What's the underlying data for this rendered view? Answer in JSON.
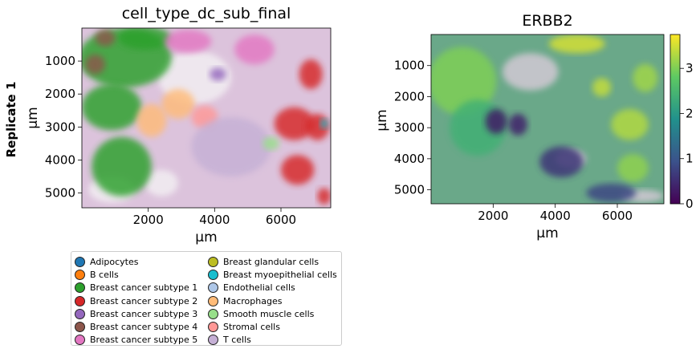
{
  "row_label": "Replicate 1",
  "colors": {
    "Adipocytes": "#1f77b4",
    "B cells": "#ff7f0e",
    "Breast cancer subtype 1": "#2ca02c",
    "Breast cancer subtype 2": "#d62728",
    "Breast cancer subtype 3": "#9467bd",
    "Breast cancer subtype 4": "#8c564b",
    "Breast cancer subtype 5": "#e377c2",
    "Breast glandular cells": "#bcbd22",
    "Breast myoepithelial cells": "#17becf",
    "Endothelial cells": "#aec7e8",
    "Macrophages": "#ffbb78",
    "Smooth muscle cells": "#98df8a",
    "Stromal cells": "#ff9896",
    "T cells": "#c5b0d5"
  },
  "chart_data": [
    {
      "type": "scatter",
      "title": "cell_type_dc_sub_final",
      "xlabel": "µm",
      "ylabel": "µm",
      "xlim": [
        0,
        7500
      ],
      "ylim": [
        5450,
        0
      ],
      "x_ticks": [
        2000,
        4000,
        6000
      ],
      "y_ticks": [
        1000,
        2000,
        3000,
        4000,
        5000
      ],
      "grid": false,
      "legend": {
        "placement": "below",
        "columns": 2,
        "entries": [
          "Adipocytes",
          "B cells",
          "Breast cancer subtype 1",
          "Breast cancer subtype 2",
          "Breast cancer subtype 3",
          "Breast cancer subtype 4",
          "Breast cancer subtype 5",
          "Breast glandular cells",
          "Breast myoepithelial cells",
          "Endothelial cells",
          "Macrophages",
          "Smooth muscle cells",
          "Stromal cells",
          "T cells"
        ]
      },
      "regions": [
        {
          "category": "Breast cancer subtype 1",
          "cx": 1300,
          "cy": 900,
          "rx": 1400,
          "ry": 900
        },
        {
          "category": "Breast cancer subtype 1",
          "cx": 900,
          "cy": 2400,
          "rx": 900,
          "ry": 700
        },
        {
          "category": "Breast cancer subtype 1",
          "cx": 1200,
          "cy": 4200,
          "rx": 900,
          "ry": 900
        },
        {
          "category": "Breast cancer subtype 1",
          "cx": 1900,
          "cy": 300,
          "rx": 800,
          "ry": 350
        },
        {
          "category": "Breast cancer subtype 4",
          "cx": 400,
          "cy": 1100,
          "rx": 300,
          "ry": 300
        },
        {
          "category": "Breast cancer subtype 4",
          "cx": 700,
          "cy": 300,
          "rx": 300,
          "ry": 250
        },
        {
          "category": "Breast cancer subtype 5",
          "cx": 5200,
          "cy": 650,
          "rx": 600,
          "ry": 450
        },
        {
          "category": "Breast cancer subtype 5",
          "cx": 3200,
          "cy": 400,
          "rx": 700,
          "ry": 350
        },
        {
          "category": "Breast cancer subtype 2",
          "cx": 6900,
          "cy": 1400,
          "rx": 350,
          "ry": 450
        },
        {
          "category": "Breast cancer subtype 2",
          "cx": 6400,
          "cy": 2900,
          "rx": 600,
          "ry": 500
        },
        {
          "category": "Breast cancer subtype 2",
          "cx": 7100,
          "cy": 3000,
          "rx": 350,
          "ry": 400
        },
        {
          "category": "Breast cancer subtype 2",
          "cx": 6500,
          "cy": 4300,
          "rx": 500,
          "ry": 450
        },
        {
          "category": "Breast cancer subtype 2",
          "cx": 7300,
          "cy": 5100,
          "rx": 200,
          "ry": 250
        },
        {
          "category": "Macrophages",
          "cx": 2100,
          "cy": 2800,
          "rx": 450,
          "ry": 500
        },
        {
          "category": "Macrophages",
          "cx": 2900,
          "cy": 2300,
          "rx": 500,
          "ry": 450
        },
        {
          "category": "Stromal cells",
          "cx": 3700,
          "cy": 2700,
          "rx": 400,
          "ry": 350
        },
        {
          "category": "T cells",
          "cx": 4500,
          "cy": 3600,
          "rx": 1200,
          "ry": 900
        },
        {
          "category": "Smooth muscle cells",
          "cx": 5700,
          "cy": 3500,
          "rx": 250,
          "ry": 200
        },
        {
          "category": "Breast myoepithelial cells",
          "cx": 7300,
          "cy": 2900,
          "rx": 120,
          "ry": 150
        },
        {
          "category": "Breast cancer subtype 3",
          "cx": 4100,
          "cy": 1400,
          "rx": 250,
          "ry": 200
        }
      ]
    },
    {
      "type": "heatmap",
      "title": "ERBB2",
      "xlabel": "µm",
      "ylabel": "µm",
      "xlim": [
        0,
        7500
      ],
      "ylim": [
        5450,
        0
      ],
      "x_ticks": [
        2000,
        4000,
        6000
      ],
      "y_ticks": [
        1000,
        2000,
        3000,
        4000,
        5000
      ],
      "colorbar": {
        "colormap": "viridis",
        "min": 0,
        "max": 3.75,
        "ticks": [
          0,
          1,
          2,
          3
        ]
      },
      "grid": false,
      "regions": [
        {
          "value": 3.0,
          "cx": 1000,
          "cy": 1500,
          "rx": 1100,
          "ry": 1100
        },
        {
          "value": 2.4,
          "cx": 1500,
          "cy": 3000,
          "rx": 900,
          "ry": 900
        },
        {
          "value": 3.2,
          "cx": 6900,
          "cy": 1400,
          "rx": 400,
          "ry": 450
        },
        {
          "value": 3.3,
          "cx": 6400,
          "cy": 2900,
          "rx": 600,
          "ry": 500
        },
        {
          "value": 3.1,
          "cx": 6500,
          "cy": 4300,
          "rx": 500,
          "ry": 450
        },
        {
          "value": 3.5,
          "cx": 4700,
          "cy": 300,
          "rx": 900,
          "ry": 300
        },
        {
          "value": 3.4,
          "cx": 5500,
          "cy": 1700,
          "rx": 300,
          "ry": 300
        },
        {
          "value": 0.3,
          "cx": 2100,
          "cy": 2800,
          "rx": 350,
          "ry": 400
        },
        {
          "value": 0.4,
          "cx": 2800,
          "cy": 2900,
          "rx": 300,
          "ry": 350
        },
        {
          "value": 0.8,
          "cx": 5800,
          "cy": 5100,
          "rx": 800,
          "ry": 300
        },
        {
          "value": 0.6,
          "cx": 4200,
          "cy": 4100,
          "rx": 700,
          "ry": 500
        }
      ]
    }
  ]
}
